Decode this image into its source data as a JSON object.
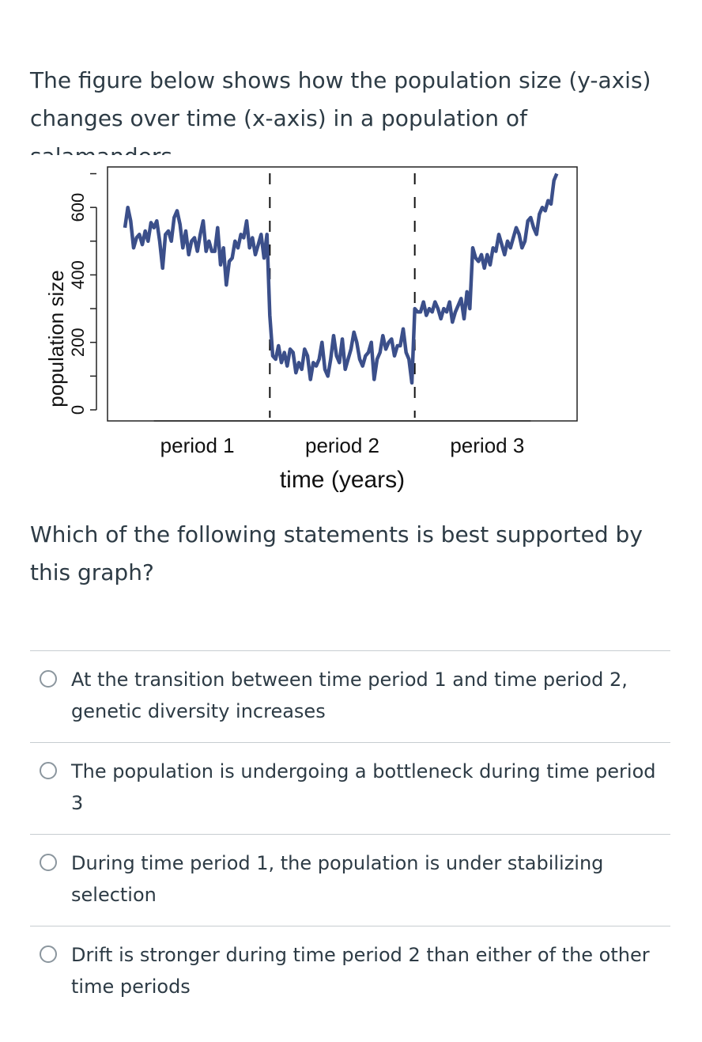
{
  "question": {
    "intro": "The figure below shows how the population size (y-axis) changes over time (x-axis) in a population of salamanders.",
    "prompt": "Which of the following statements is best supported by this graph?"
  },
  "answers": [
    {
      "label": "At the transition between time period 1 and time period 2, genetic diversity increases"
    },
    {
      "label": "The population is undergoing a bottleneck during time period 3"
    },
    {
      "label": "During time period 1, the population is under stabilizing selection"
    },
    {
      "label": "Drift is stronger during time period 2 than either of the other time periods"
    }
  ],
  "chart_data": {
    "type": "line",
    "title": "",
    "xlabel": "time (years)",
    "ylabel": "population size",
    "yticks": [
      0,
      200,
      400,
      600
    ],
    "ylim": [
      0,
      720
    ],
    "xlim": [
      0,
      150
    ],
    "period_labels": [
      "period 1",
      "period 2",
      "period 3"
    ],
    "period_boundaries": [
      50,
      100
    ],
    "line_color": "#3b4f8a",
    "series": [
      {
        "x": [
          0,
          1,
          2,
          3,
          4,
          5,
          6,
          7,
          8,
          9,
          10,
          11,
          12,
          13,
          14,
          15,
          16,
          17,
          18,
          19,
          20,
          21,
          22,
          23,
          24,
          25,
          26,
          27,
          28,
          29,
          30,
          31,
          32,
          33,
          34,
          35,
          36,
          37,
          38,
          39,
          40,
          41,
          42,
          43,
          44,
          45,
          46,
          47,
          48,
          49,
          50,
          51,
          52,
          53,
          54,
          55,
          56,
          57,
          58,
          59,
          60,
          61,
          62,
          63,
          64,
          65,
          66,
          67,
          68,
          69,
          70,
          71,
          72,
          73,
          74,
          75,
          76,
          77,
          78,
          79,
          80,
          81,
          82,
          83,
          84,
          85,
          86,
          87,
          88,
          89,
          90,
          91,
          92,
          93,
          94,
          95,
          96,
          97,
          98,
          99,
          100,
          101,
          102,
          103,
          104,
          105,
          106,
          107,
          108,
          109,
          110,
          111,
          112,
          113,
          114,
          115,
          116,
          117,
          118,
          119,
          120,
          121,
          122,
          123,
          124,
          125,
          126,
          127,
          128,
          129,
          130,
          131,
          132,
          133,
          134,
          135,
          136,
          137,
          138,
          139,
          140,
          141,
          142,
          143,
          144,
          145,
          146,
          147,
          148,
          149
        ],
        "values": [
          540,
          600,
          560,
          480,
          510,
          520,
          490,
          530,
          500,
          555,
          540,
          560,
          500,
          420,
          520,
          530,
          500,
          570,
          590,
          550,
          480,
          530,
          460,
          500,
          510,
          470,
          520,
          560,
          470,
          500,
          470,
          470,
          540,
          430,
          480,
          370,
          440,
          450,
          500,
          480,
          520,
          510,
          560,
          480,
          510,
          460,
          490,
          520,
          450,
          520,
          280,
          160,
          150,
          190,
          140,
          170,
          130,
          180,
          170,
          110,
          140,
          120,
          180,
          160,
          90,
          140,
          130,
          150,
          200,
          120,
          100,
          150,
          220,
          160,
          140,
          210,
          120,
          150,
          180,
          230,
          200,
          150,
          130,
          160,
          170,
          200,
          90,
          150,
          170,
          220,
          180,
          200,
          210,
          160,
          190,
          190,
          240,
          170,
          150,
          80,
          300,
          290,
          290,
          320,
          280,
          300,
          290,
          320,
          300,
          270,
          300,
          290,
          320,
          260,
          290,
          310,
          330,
          270,
          350,
          300,
          480,
          450,
          440,
          460,
          420,
          460,
          430,
          480,
          470,
          520,
          490,
          460,
          500,
          480,
          510,
          540,
          520,
          480,
          500,
          560,
          570,
          540,
          520,
          580,
          600,
          590,
          620,
          610,
          680,
          700
        ]
      }
    ]
  }
}
